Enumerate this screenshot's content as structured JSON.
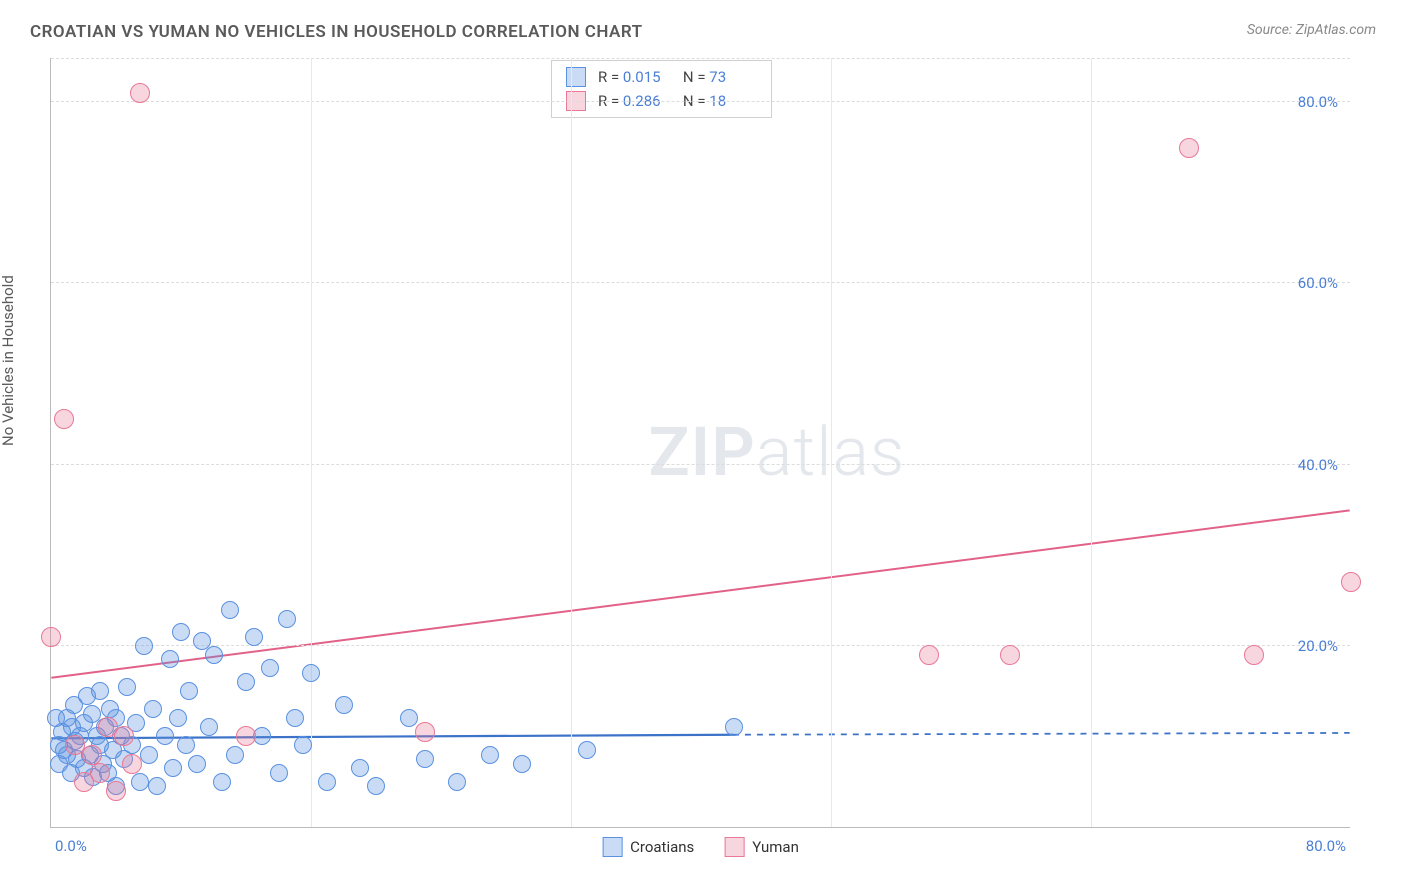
{
  "title": "CROATIAN VS YUMAN NO VEHICLES IN HOUSEHOLD CORRELATION CHART",
  "source": "Source: ZipAtlas.com",
  "ylabel": "No Vehicles in Household",
  "watermark_bold": "ZIP",
  "watermark_light": "atlas",
  "chart": {
    "type": "scatter",
    "xlim": [
      0,
      80
    ],
    "ylim": [
      0,
      85
    ],
    "ytick_values": [
      20,
      40,
      60,
      80
    ],
    "ytick_labels": [
      "20.0%",
      "40.0%",
      "60.0%",
      "80.0%"
    ],
    "xtick_grid": [
      16,
      32,
      48,
      64
    ],
    "xtick_left": "0.0%",
    "xtick_right": "80.0%",
    "background_color": "#ffffff",
    "grid_color": "#dcdcdc",
    "series": [
      {
        "name": "Croatians",
        "fill": "rgba(90,145,225,0.32)",
        "stroke": "#5a91e1",
        "marker_r": 9,
        "R": "0.015",
        "N": "73",
        "regression": {
          "x1": 0,
          "y1": 9.8,
          "x2": 42,
          "y2": 10.2,
          "dashed_to": 80,
          "y3": 10.4,
          "color": "#3c72c8",
          "width": 2.2
        },
        "points": [
          [
            0.3,
            12
          ],
          [
            0.5,
            9
          ],
          [
            0.5,
            7
          ],
          [
            0.7,
            10.5
          ],
          [
            0.8,
            8.5
          ],
          [
            1,
            12
          ],
          [
            1,
            8
          ],
          [
            1.2,
            6
          ],
          [
            1.3,
            11
          ],
          [
            1.4,
            13.5
          ],
          [
            1.5,
            9.5
          ],
          [
            1.6,
            7.5
          ],
          [
            1.8,
            10
          ],
          [
            2,
            11.5
          ],
          [
            2,
            6.5
          ],
          [
            2.2,
            14.5
          ],
          [
            2.4,
            8
          ],
          [
            2.5,
            12.5
          ],
          [
            2.6,
            5.5
          ],
          [
            2.8,
            10
          ],
          [
            3,
            9
          ],
          [
            3,
            15
          ],
          [
            3.2,
            7
          ],
          [
            3.3,
            11
          ],
          [
            3.5,
            6
          ],
          [
            3.6,
            13
          ],
          [
            3.8,
            8.5
          ],
          [
            4,
            12
          ],
          [
            4,
            4.5
          ],
          [
            4.3,
            10
          ],
          [
            4.5,
            7.5
          ],
          [
            4.7,
            15.5
          ],
          [
            5,
            9
          ],
          [
            5.2,
            11.5
          ],
          [
            5.5,
            5
          ],
          [
            5.7,
            20
          ],
          [
            6,
            8
          ],
          [
            6.3,
            13
          ],
          [
            6.5,
            4.5
          ],
          [
            7,
            10
          ],
          [
            7.3,
            18.5
          ],
          [
            7.5,
            6.5
          ],
          [
            7.8,
            12
          ],
          [
            8,
            21.5
          ],
          [
            8.3,
            9
          ],
          [
            8.5,
            15
          ],
          [
            9,
            7
          ],
          [
            9.3,
            20.5
          ],
          [
            9.7,
            11
          ],
          [
            10,
            19
          ],
          [
            10.5,
            5
          ],
          [
            11,
            24
          ],
          [
            11.3,
            8
          ],
          [
            12,
            16
          ],
          [
            12.5,
            21
          ],
          [
            13,
            10
          ],
          [
            13.5,
            17.5
          ],
          [
            14,
            6
          ],
          [
            14.5,
            23
          ],
          [
            15,
            12
          ],
          [
            15.5,
            9
          ],
          [
            16,
            17
          ],
          [
            17,
            5
          ],
          [
            18,
            13.5
          ],
          [
            19,
            6.5
          ],
          [
            20,
            4.5
          ],
          [
            22,
            12
          ],
          [
            23,
            7.5
          ],
          [
            25,
            5
          ],
          [
            27,
            8
          ],
          [
            29,
            7
          ],
          [
            33,
            8.5
          ],
          [
            42,
            11
          ]
        ]
      },
      {
        "name": "Yuman",
        "fill": "rgba(232,120,150,0.30)",
        "stroke": "#e87896",
        "marker_r": 10,
        "R": "0.286",
        "N": "18",
        "regression": {
          "x1": 0,
          "y1": 16.5,
          "x2": 80,
          "y2": 35,
          "color": "#e26188",
          "width": 2
        },
        "points": [
          [
            0,
            21
          ],
          [
            0.8,
            45
          ],
          [
            1.5,
            9
          ],
          [
            2,
            5
          ],
          [
            2.5,
            8
          ],
          [
            3,
            6
          ],
          [
            3.5,
            11
          ],
          [
            4,
            4
          ],
          [
            4.5,
            10
          ],
          [
            5,
            7
          ],
          [
            5.5,
            81
          ],
          [
            12,
            10
          ],
          [
            23,
            10.5
          ],
          [
            54,
            19
          ],
          [
            59,
            19
          ],
          [
            70,
            75
          ],
          [
            74,
            19
          ],
          [
            80,
            27
          ]
        ]
      }
    ]
  },
  "colors": {
    "title": "#5a5a5a",
    "tick_label": "#4a7fd6",
    "source": "#888888"
  }
}
